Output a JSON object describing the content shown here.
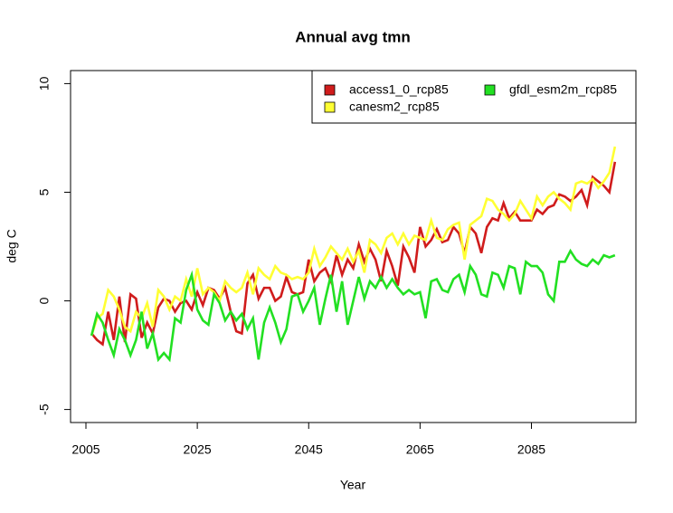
{
  "chart_data": {
    "type": "line",
    "title": "Annual avg  tmn",
    "x_label": "Year",
    "y_label": "deg C",
    "x": [
      2006,
      2007,
      2008,
      2009,
      2010,
      2011,
      2012,
      2013,
      2014,
      2015,
      2016,
      2017,
      2018,
      2019,
      2020,
      2021,
      2022,
      2023,
      2024,
      2025,
      2026,
      2027,
      2028,
      2029,
      2030,
      2031,
      2032,
      2033,
      2034,
      2035,
      2036,
      2037,
      2038,
      2039,
      2040,
      2041,
      2042,
      2043,
      2044,
      2045,
      2046,
      2047,
      2048,
      2049,
      2050,
      2051,
      2052,
      2053,
      2054,
      2055,
      2056,
      2057,
      2058,
      2059,
      2060,
      2061,
      2062,
      2063,
      2064,
      2065,
      2066,
      2067,
      2068,
      2069,
      2070,
      2071,
      2072,
      2073,
      2074,
      2075,
      2076,
      2077,
      2078,
      2079,
      2080,
      2081,
      2082,
      2083,
      2084,
      2085,
      2086,
      2087,
      2088,
      2089,
      2090,
      2091,
      2092,
      2093,
      2094,
      2095,
      2096,
      2097,
      2098,
      2099,
      2100
    ],
    "series": [
      {
        "name": "access1_0_rcp85",
        "color": "#d01c1c",
        "values": [
          -1.5,
          -1.8,
          -2.0,
          -0.5,
          -1.8,
          0.2,
          -1.9,
          0.3,
          0.1,
          -1.7,
          -1.0,
          -1.5,
          -0.3,
          0.1,
          0.0,
          -0.5,
          -0.1,
          0.0,
          -0.4,
          0.4,
          -0.2,
          0.6,
          0.5,
          0.1,
          0.6,
          -0.5,
          -1.4,
          -1.5,
          0.8,
          1.2,
          0.1,
          0.6,
          0.6,
          0.0,
          0.2,
          1.1,
          0.4,
          0.3,
          0.4,
          1.9,
          0.9,
          1.3,
          1.5,
          0.9,
          2.1,
          1.2,
          1.9,
          1.5,
          2.6,
          1.8,
          2.4,
          1.9,
          0.9,
          2.3,
          1.6,
          0.7,
          2.5,
          2.0,
          1.3,
          3.4,
          2.5,
          2.8,
          3.3,
          2.7,
          2.8,
          3.4,
          3.1,
          2.2,
          3.4,
          3.1,
          2.2,
          3.4,
          3.8,
          3.7,
          4.5,
          3.8,
          4.1,
          3.7,
          3.7,
          3.7,
          4.2,
          4.0,
          4.3,
          4.4,
          4.9,
          4.8,
          4.6,
          4.8,
          5.1,
          4.4,
          5.7,
          5.5,
          5.3,
          5.0,
          6.4
        ]
      },
      {
        "name": "canesm2_rcp85",
        "color": "#ffff33",
        "values": [
          -1.6,
          -0.8,
          -0.6,
          0.5,
          0.2,
          -0.4,
          -1.2,
          -1.4,
          -0.5,
          -0.8,
          -0.1,
          -1.2,
          0.5,
          0.2,
          -0.4,
          0.2,
          0.0,
          1.0,
          0.2,
          1.5,
          0.3,
          0.6,
          0.4,
          0.0,
          0.9,
          0.6,
          0.4,
          0.6,
          1.3,
          0.3,
          1.5,
          1.2,
          1.0,
          1.6,
          1.3,
          1.2,
          1.0,
          1.1,
          1.0,
          1.3,
          2.4,
          1.6,
          2.0,
          2.5,
          2.2,
          1.9,
          2.4,
          1.8,
          2.3,
          1.3,
          2.8,
          2.6,
          2.2,
          2.9,
          3.1,
          2.6,
          3.1,
          2.6,
          3.0,
          2.9,
          2.8,
          3.7,
          2.9,
          2.8,
          3.3,
          3.5,
          3.6,
          1.9,
          3.5,
          3.7,
          3.9,
          4.7,
          4.6,
          4.2,
          4.0,
          3.7,
          4.0,
          4.6,
          4.2,
          3.8,
          4.8,
          4.4,
          4.8,
          5.0,
          4.7,
          4.5,
          4.2,
          5.4,
          5.5,
          5.4,
          5.6,
          5.2,
          5.5,
          5.9,
          7.1
        ]
      },
      {
        "name": "gfdl_esm2m_rcp85",
        "color": "#22e022",
        "values": [
          -1.6,
          -0.6,
          -1.0,
          -1.8,
          -2.5,
          -1.3,
          -1.8,
          -2.5,
          -1.8,
          -0.5,
          -2.2,
          -1.5,
          -2.7,
          -2.4,
          -2.7,
          -0.8,
          -1.0,
          0.5,
          1.2,
          -0.4,
          -0.9,
          -1.1,
          0.3,
          -0.1,
          -0.9,
          -0.5,
          -0.9,
          -0.6,
          -1.3,
          -0.8,
          -2.7,
          -1.0,
          -0.3,
          -1.0,
          -1.9,
          -1.3,
          0.2,
          0.3,
          -0.5,
          0.0,
          0.6,
          -1.1,
          0.1,
          1.2,
          -0.5,
          0.9,
          -1.1,
          0.0,
          1.1,
          0.1,
          0.9,
          0.6,
          1.1,
          0.6,
          1.0,
          0.6,
          0.3,
          0.5,
          0.3,
          0.4,
          -0.8,
          0.9,
          1.0,
          0.5,
          0.4,
          1.0,
          1.2,
          0.4,
          1.6,
          1.2,
          0.3,
          0.2,
          1.3,
          1.2,
          0.6,
          1.6,
          1.5,
          0.3,
          1.8,
          1.6,
          1.6,
          1.3,
          0.3,
          0.0,
          1.8,
          1.8,
          2.3,
          1.9,
          1.7,
          1.6,
          1.9,
          1.7,
          2.1,
          2.0,
          2.1
        ]
      }
    ],
    "xlim": [
      2002.24,
      2103.76
    ],
    "ylim": [
      -5.6,
      10.6
    ],
    "xticks": [
      2005,
      2025,
      2045,
      2065,
      2085
    ],
    "yticks": [
      -5,
      0,
      5,
      10
    ],
    "legend": "topright",
    "grid": false
  }
}
